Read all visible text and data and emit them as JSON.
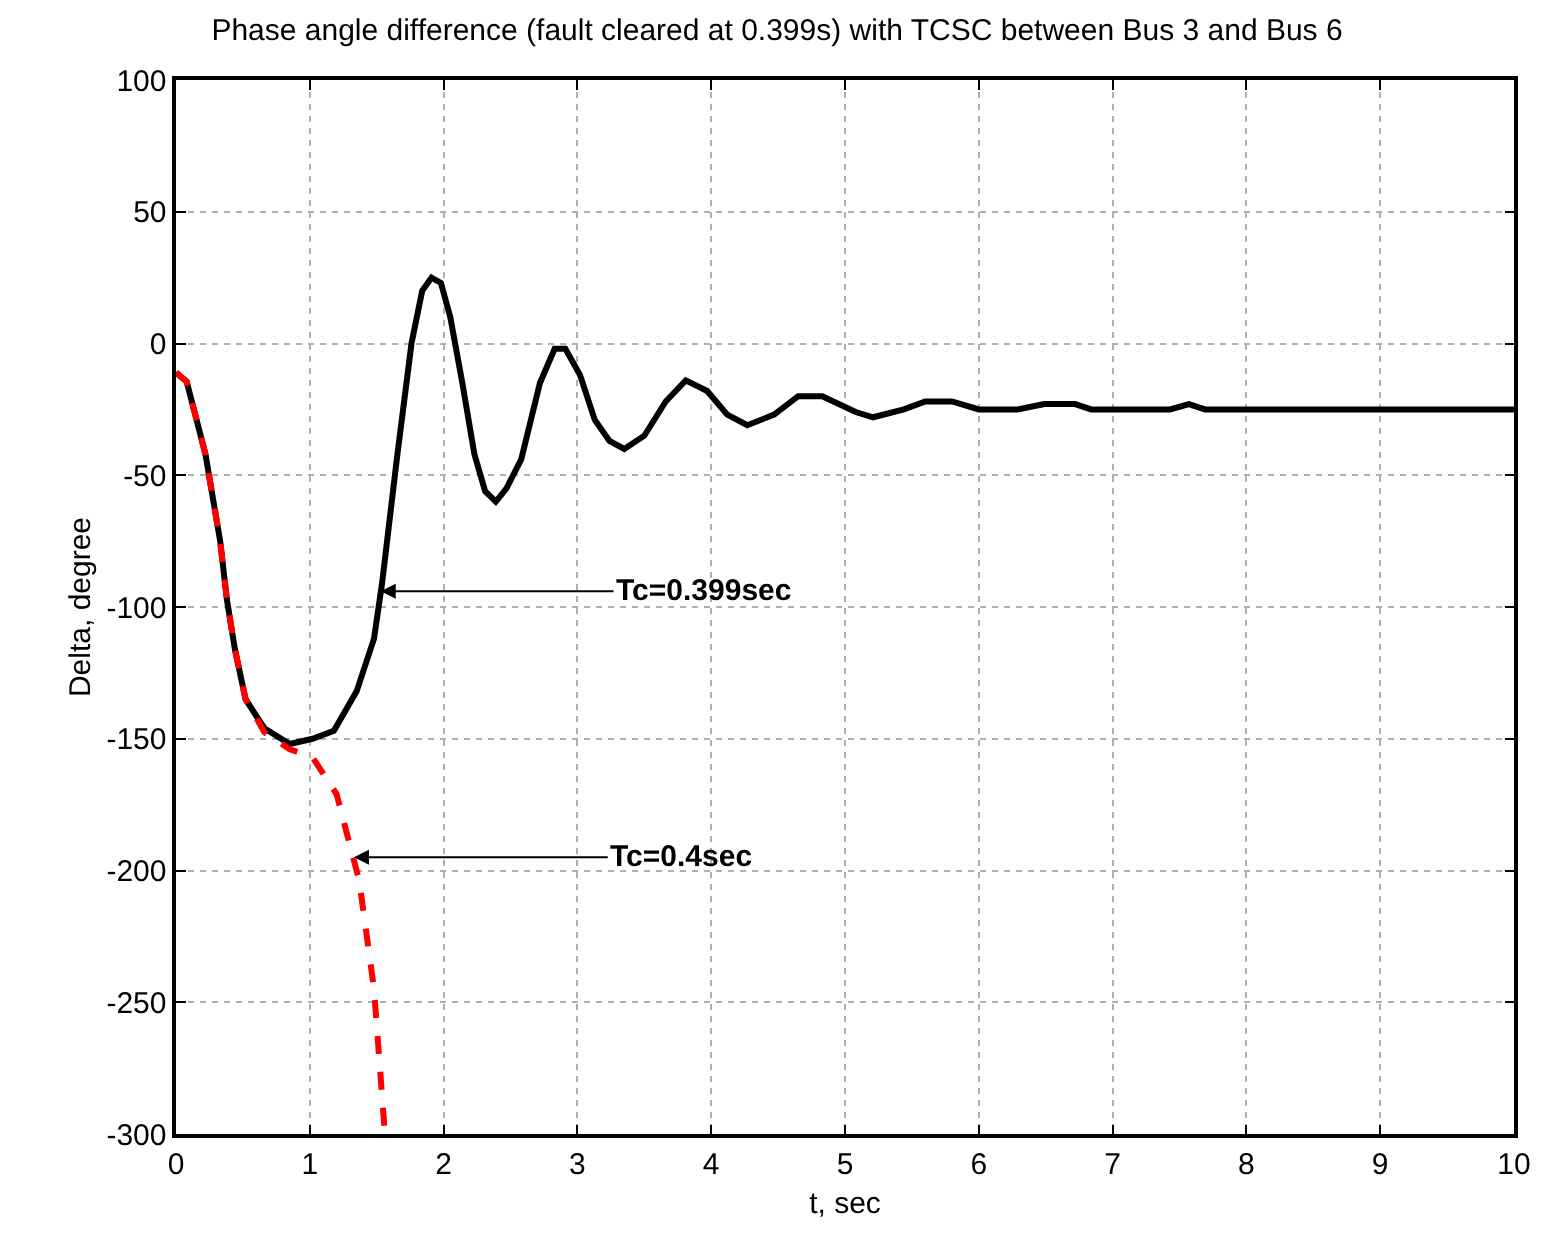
{
  "chart_data": {
    "type": "line",
    "title": "Phase angle difference (fault cleared at 0.399s) with TCSC between Bus 3 and Bus 6",
    "xlabel": "t, sec",
    "ylabel": "Delta, degree",
    "series": [
      {
        "color": "#000000",
        "line_style": "solid",
        "x": [
          0,
          0.08,
          0.22,
          0.33,
          0.38,
          0.44,
          0.52,
          0.66,
          0.85,
          1.02,
          1.18,
          1.35,
          1.48,
          1.54,
          1.65,
          1.76,
          1.84,
          1.91,
          1.98,
          2.05,
          2.14,
          2.23,
          2.31,
          2.39,
          2.47,
          2.58,
          2.72,
          2.83,
          2.91,
          3.02,
          3.13,
          3.24,
          3.35,
          3.5,
          3.66,
          3.81,
          3.97,
          4.12,
          4.27,
          4.47,
          4.65,
          4.83,
          5.08,
          5.21,
          5.44,
          5.6,
          5.8,
          6.0,
          6.29,
          6.49,
          6.72,
          6.84,
          7.43,
          7.57,
          7.69,
          10
        ],
        "values": [
          -11,
          -14.5,
          -42,
          -75,
          -97,
          -116,
          -135,
          -146,
          -152,
          -150,
          -147,
          -132,
          -112,
          -91,
          -44,
          0,
          20,
          25,
          23,
          10,
          -15,
          -42,
          -56,
          -60,
          -55,
          -44,
          -15,
          -2,
          -2,
          -12,
          -29,
          -37,
          -40,
          -35,
          -22,
          -14,
          -18,
          -27,
          -31,
          -27,
          -20,
          -20,
          -26,
          -28,
          -25,
          -22,
          -22,
          -25,
          -25,
          -23,
          -23,
          -25,
          -25,
          -23,
          -25,
          -25
        ]
      },
      {
        "color": "#ff0000",
        "line_style": "dashed",
        "x": [
          0,
          0.08,
          0.22,
          0.33,
          0.38,
          0.44,
          0.52,
          0.66,
          0.85,
          1.02,
          1.2,
          1.37,
          1.48,
          1.56
        ],
        "values": [
          -11,
          -14.5,
          -42,
          -75,
          -97,
          -116,
          -135,
          -147.5,
          -154,
          -157,
          -171,
          -204,
          -245,
          -299
        ]
      }
    ],
    "annotations": [
      {
        "text": "Tc=0.399sec",
        "x": 1.53,
        "y": -94
      },
      {
        "text": "Tc=0.4sec",
        "x": 1.33,
        "y": -195
      }
    ],
    "xlim": [
      0,
      10
    ],
    "ylim": [
      -300,
      100
    ],
    "xticks": [
      0,
      1,
      2,
      3,
      4,
      5,
      6,
      7,
      8,
      9,
      10
    ],
    "yticks": [
      -300,
      -250,
      -200,
      -150,
      -100,
      -50,
      0,
      50,
      100
    ],
    "grid": true,
    "marker": "none"
  }
}
